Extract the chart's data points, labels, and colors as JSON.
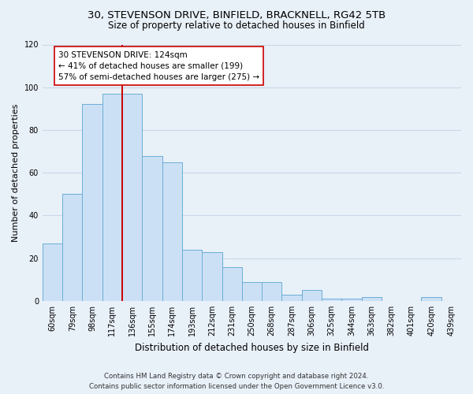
{
  "title_line1": "30, STEVENSON DRIVE, BINFIELD, BRACKNELL, RG42 5TB",
  "title_line2": "Size of property relative to detached houses in Binfield",
  "xlabel": "Distribution of detached houses by size in Binfield",
  "ylabel": "Number of detached properties",
  "categories": [
    "60sqm",
    "79sqm",
    "98sqm",
    "117sqm",
    "136sqm",
    "155sqm",
    "174sqm",
    "193sqm",
    "212sqm",
    "231sqm",
    "250sqm",
    "268sqm",
    "287sqm",
    "306sqm",
    "325sqm",
    "344sqm",
    "363sqm",
    "382sqm",
    "401sqm",
    "420sqm",
    "439sqm"
  ],
  "values": [
    27,
    50,
    92,
    97,
    97,
    68,
    65,
    24,
    23,
    16,
    9,
    9,
    3,
    5,
    1,
    1,
    2,
    0,
    0,
    2,
    0
  ],
  "bar_color": "#cce0f5",
  "bar_edge_color": "#6aaed6",
  "vline_x": 3.5,
  "vline_color": "#cc0000",
  "annotation_text": "30 STEVENSON DRIVE: 124sqm\n← 41% of detached houses are smaller (199)\n57% of semi-detached houses are larger (275) →",
  "annotation_box_color": "white",
  "annotation_box_edge": "#cc0000",
  "ylim": [
    0,
    120
  ],
  "yticks": [
    0,
    20,
    40,
    60,
    80,
    100,
    120
  ],
  "footer_line1": "Contains HM Land Registry data © Crown copyright and database right 2024.",
  "footer_line2": "Contains public sector information licensed under the Open Government Licence v3.0.",
  "bg_color": "#e8f0f8",
  "plot_bg_color": "#e8f0f8",
  "grid_color": "#c8d8e8",
  "title1_fontsize": 9.5,
  "title2_fontsize": 8.5,
  "ylabel_fontsize": 8.0,
  "xlabel_fontsize": 8.5,
  "tick_fontsize": 7.0,
  "annot_fontsize": 7.5,
  "footer_fontsize": 6.2
}
